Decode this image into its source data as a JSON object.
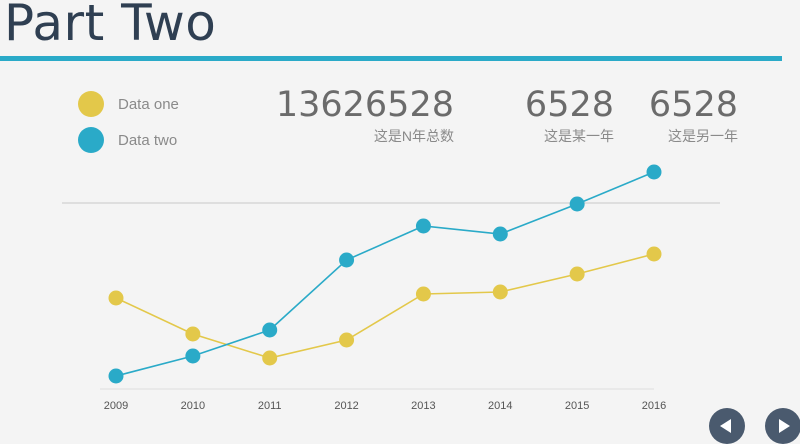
{
  "title": "Part Two",
  "colors": {
    "series1": "#e3c84a",
    "series2": "#2aaac8",
    "title_rule": "#2aaac8",
    "nav": "#4a5a6e"
  },
  "stats": [
    {
      "value": "13626528",
      "caption": "这是N年总数"
    },
    {
      "value": "6528",
      "caption": "这是某一年"
    },
    {
      "value": "6528",
      "caption": "这是另一年"
    }
  ],
  "nav": {
    "prev_icon": "triangle-left-icon",
    "next_icon": "triangle-right-icon"
  },
  "chart_data": {
    "type": "line",
    "categories": [
      "2009",
      "2010",
      "2011",
      "2012",
      "2013",
      "2014",
      "2015",
      "2016"
    ],
    "series": [
      {
        "name": "Data one",
        "color": "#e3c84a",
        "values": [
          56,
          38,
          26,
          35,
          58,
          59,
          68,
          78
        ]
      },
      {
        "name": "Data two",
        "color": "#2aaac8",
        "values": [
          17,
          27,
          40,
          75,
          92,
          88,
          103,
          119
        ]
      }
    ],
    "ylim": [
      0,
      130
    ],
    "grid": false,
    "legend": "top-left"
  }
}
